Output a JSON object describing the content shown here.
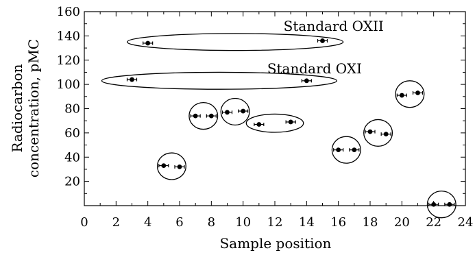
{
  "chart_data": {
    "type": "scatter",
    "title": "",
    "xlabel": "Sample position",
    "ylabel_lines": [
      "Radiocarbon",
      "concentration, pMC"
    ],
    "xlim": [
      0,
      24
    ],
    "ylim": [
      0,
      160
    ],
    "x_ticks": [
      0,
      2,
      4,
      6,
      8,
      10,
      12,
      14,
      16,
      18,
      20,
      22,
      24
    ],
    "y_ticks": [
      20,
      40,
      60,
      80,
      100,
      120,
      140,
      160
    ],
    "grid": false,
    "legend": "none",
    "series": [
      {
        "points": [
          {
            "x": 3,
            "y": 104
          },
          {
            "x": 4,
            "y": 134
          },
          {
            "x": 5,
            "y": 33
          },
          {
            "x": 6,
            "y": 32
          },
          {
            "x": 7,
            "y": 74
          },
          {
            "x": 8,
            "y": 74
          },
          {
            "x": 9,
            "y": 77
          },
          {
            "x": 10,
            "y": 78
          },
          {
            "x": 11,
            "y": 67
          },
          {
            "x": 13,
            "y": 69
          },
          {
            "x": 14,
            "y": 103
          },
          {
            "x": 15,
            "y": 136
          },
          {
            "x": 16,
            "y": 46
          },
          {
            "x": 17,
            "y": 46
          },
          {
            "x": 18,
            "y": 61
          },
          {
            "x": 19,
            "y": 59
          },
          {
            "x": 20,
            "y": 91
          },
          {
            "x": 21,
            "y": 93
          },
          {
            "x": 22,
            "y": 1
          },
          {
            "x": 23,
            "y": 1
          }
        ]
      }
    ],
    "groups": [
      {
        "cx": 9.5,
        "cy": 135,
        "rx": 6.8,
        "ry": 7,
        "label": "Standard OXII"
      },
      {
        "cx": 8.5,
        "cy": 103,
        "rx": 7.4,
        "ry": 7,
        "label": "Standard OXI"
      },
      {
        "cx": 5.5,
        "cy": 32.5,
        "rx": 0.9,
        "ry": 11,
        "label": ""
      },
      {
        "cx": 7.5,
        "cy": 74,
        "rx": 0.9,
        "ry": 11,
        "label": ""
      },
      {
        "cx": 9.5,
        "cy": 77.5,
        "rx": 0.9,
        "ry": 11,
        "label": ""
      },
      {
        "cx": 12,
        "cy": 68,
        "rx": 1.8,
        "ry": 7.5,
        "label": ""
      },
      {
        "cx": 16.5,
        "cy": 46,
        "rx": 0.9,
        "ry": 11,
        "label": ""
      },
      {
        "cx": 18.5,
        "cy": 60,
        "rx": 0.9,
        "ry": 11,
        "label": ""
      },
      {
        "cx": 20.5,
        "cy": 92,
        "rx": 0.9,
        "ry": 11,
        "label": ""
      },
      {
        "cx": 22.5,
        "cy": 1,
        "rx": 0.9,
        "ry": 11,
        "label": ""
      }
    ],
    "annotations": [
      {
        "text": "Standard OXII",
        "x": 15.7,
        "y": 148
      },
      {
        "text": "Standard OXI",
        "x": 14.5,
        "y": 113
      }
    ]
  }
}
